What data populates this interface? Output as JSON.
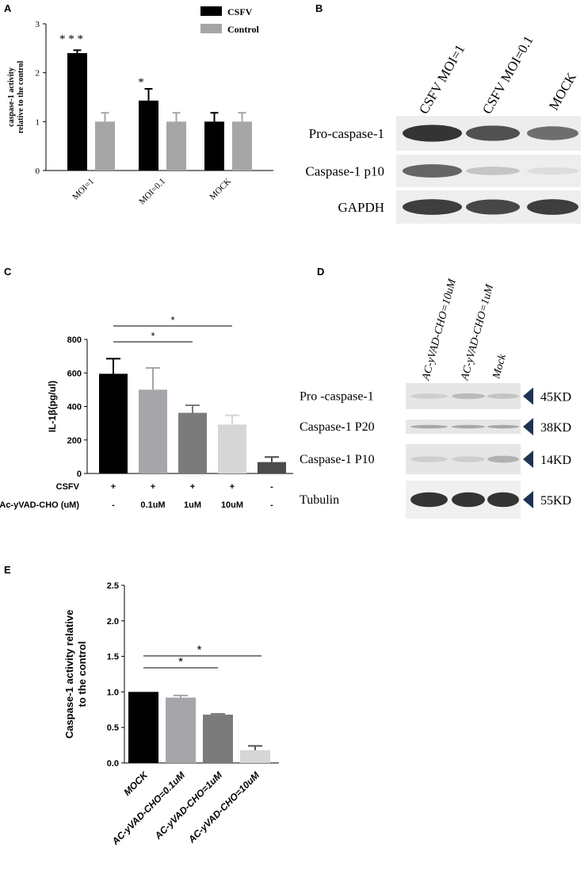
{
  "panels": {
    "A": {
      "label": "A"
    },
    "B": {
      "label": "B"
    },
    "C": {
      "label": "C"
    },
    "D": {
      "label": "D"
    },
    "E": {
      "label": "E"
    }
  },
  "chart_data": [
    {
      "panel": "A",
      "type": "bar",
      "ylabel": "caspase-1 activity relative to the control",
      "ylabel_lines": [
        "caspase-1 activity",
        "relative to the control"
      ],
      "categories": [
        "MOI=1",
        "MOI=0.1",
        "MOCK"
      ],
      "yticks": [
        "0",
        "1",
        "2",
        "3"
      ],
      "ylim": [
        0,
        3
      ],
      "legend_position": "top-right",
      "series": [
        {
          "name": "CSFV",
          "color": "#000000",
          "values": [
            2.4,
            1.43,
            1.0
          ],
          "errors": [
            0.06,
            0.24,
            0.18
          ]
        },
        {
          "name": "Control",
          "color": "#a6a6a6",
          "values": [
            1.0,
            1.0,
            1.0
          ],
          "errors": [
            0.18,
            0.18,
            0.18
          ]
        }
      ],
      "annotations": [
        "* * *",
        "*"
      ]
    },
    {
      "panel": "C",
      "type": "bar",
      "ylabel": "IL-1β(pg/ul)",
      "yticks": [
        "0",
        "200",
        "400",
        "600",
        "800"
      ],
      "ylim": [
        0,
        800
      ],
      "values": [
        595,
        500,
        362,
        292,
        68
      ],
      "errors": [
        90,
        130,
        45,
        55,
        30
      ],
      "colors": [
        "#000000",
        "#a5a5aa",
        "#7b7b7b",
        "#d6d6d6",
        "#4b4b4b"
      ],
      "row_labels": [
        "CSFV",
        "Ac-yVAD-CHO (uM)"
      ],
      "csfv_row": [
        "+",
        "+",
        "+",
        "+",
        "-"
      ],
      "inhibitor_row": [
        "-",
        "0.1uM",
        "1uM",
        "10uM",
        "-"
      ],
      "significance": [
        {
          "from": 0,
          "to": 2,
          "label": "*"
        },
        {
          "from": 0,
          "to": 3,
          "label": "*"
        }
      ]
    },
    {
      "panel": "E",
      "type": "bar",
      "ylabel": "Caspase-1 activity relative to the control",
      "ylabel_lines": [
        "Caspase-1 activity relative",
        "to the control"
      ],
      "categories": [
        "MOCK",
        "AC-yVAD-CHO=0.1uM",
        "AC-yVAD-CHO=1uM",
        "AC-yVAD-CHO=10uM"
      ],
      "yticks": [
        "0.0",
        "0.5",
        "1.0",
        "1.5",
        "2.0",
        "2.5"
      ],
      "ylim": [
        0,
        2.5
      ],
      "values": [
        1.0,
        0.92,
        0.68,
        0.18
      ],
      "errors": [
        0.0,
        0.03,
        0.01,
        0.06
      ],
      "colors": [
        "#000000",
        "#a5a5aa",
        "#7b7b7b",
        "#d6d6d6"
      ],
      "significance": [
        {
          "from": 0,
          "to": 2,
          "label": "*"
        },
        {
          "from": 0,
          "to": 3,
          "label": "*"
        }
      ]
    }
  ],
  "blots": {
    "B": {
      "lanes": [
        "CSFV MOI=1",
        "CSFV MOI=0.1",
        "MOCK"
      ],
      "rows": [
        {
          "label": "Pro-caspase-1",
          "intensity": [
            0.95,
            0.8,
            0.65
          ]
        },
        {
          "label": "Caspase-1  p10",
          "intensity": [
            0.7,
            0.2,
            0.08
          ]
        },
        {
          "label": "GAPDH",
          "intensity": [
            0.9,
            0.85,
            0.9
          ]
        }
      ]
    },
    "D": {
      "lanes": [
        "AC-yVAD-CHO=10uM",
        "AC-yVAD-CHO=1uM",
        "Mock"
      ],
      "rows": [
        {
          "label": "Pro -caspase-1",
          "marker": "45KD",
          "intensity": [
            0.15,
            0.25,
            0.2
          ]
        },
        {
          "label": "Caspase-1 P20",
          "marker": "38KD",
          "intensity": [
            0.35,
            0.35,
            0.35
          ]
        },
        {
          "label": "Caspase-1 P10",
          "marker": "14KD",
          "intensity": [
            0.15,
            0.15,
            0.3
          ]
        },
        {
          "label": "Tubulin",
          "marker": "55KD",
          "intensity": [
            0.95,
            0.95,
            0.95
          ]
        }
      ]
    }
  }
}
